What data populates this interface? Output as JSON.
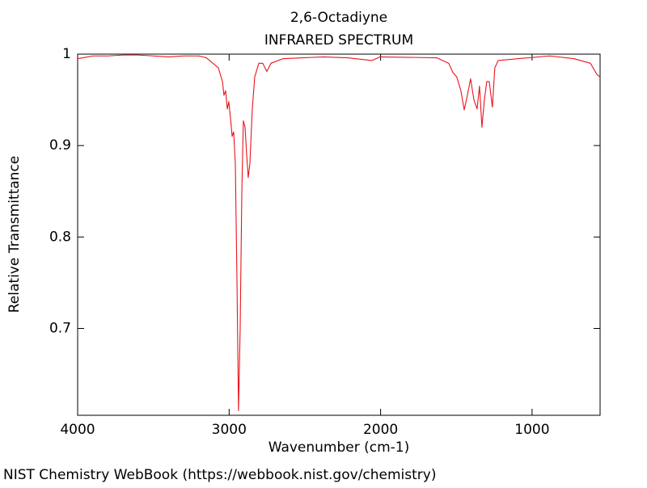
{
  "chart_data": {
    "type": "line",
    "title": "2,6-Octadiyne",
    "subtitle": "INFRARED SPECTRUM",
    "x_label": "Wavenumber (cm-1)",
    "y_label": "Relative Transmittance",
    "source": "NIST Chemistry WebBook (https://webbook.nist.gov/chemistry)",
    "x": [
      4000,
      3900,
      3800,
      3700,
      3600,
      3500,
      3400,
      3300,
      3200,
      3150,
      3071,
      3044,
      3034,
      3023,
      3012,
      3002,
      2991,
      2980,
      2970,
      2959,
      2948,
      2938,
      2927,
      2916,
      2906,
      2895,
      2884,
      2874,
      2863,
      2847,
      2831,
      2804,
      2778,
      2751,
      2724,
      2644,
      2377,
      2217,
      2057,
      2004,
      1630,
      1550,
      1523,
      1497,
      1470,
      1448,
      1427,
      1406,
      1384,
      1363,
      1347,
      1331,
      1315,
      1299,
      1283,
      1262,
      1246,
      1224,
      1096,
      883,
      722,
      615,
      573,
      551
    ],
    "series": [
      {
        "name": "2,6-Octadiyne",
        "color": "#e8141c",
        "values": [
          0.995,
          0.998,
          0.998,
          0.999,
          0.999,
          0.998,
          0.997,
          0.998,
          0.998,
          0.996,
          0.985,
          0.97,
          0.955,
          0.96,
          0.94,
          0.948,
          0.93,
          0.91,
          0.915,
          0.88,
          0.75,
          0.61,
          0.7,
          0.85,
          0.927,
          0.92,
          0.89,
          0.865,
          0.88,
          0.94,
          0.975,
          0.99,
          0.99,
          0.981,
          0.99,
          0.995,
          0.997,
          0.996,
          0.993,
          0.997,
          0.996,
          0.99,
          0.98,
          0.975,
          0.96,
          0.939,
          0.955,
          0.973,
          0.95,
          0.94,
          0.965,
          0.92,
          0.95,
          0.97,
          0.97,
          0.942,
          0.985,
          0.993,
          0.995,
          0.998,
          0.995,
          0.99,
          0.978,
          0.975
        ]
      }
    ],
    "xlim": [
      4000,
      551
    ],
    "ylim": [
      0.605,
      1.0
    ],
    "xticks": [
      4000,
      3000,
      2000,
      1000
    ],
    "yticks": [
      0.7,
      0.8,
      0.9,
      1
    ],
    "grid": false
  }
}
